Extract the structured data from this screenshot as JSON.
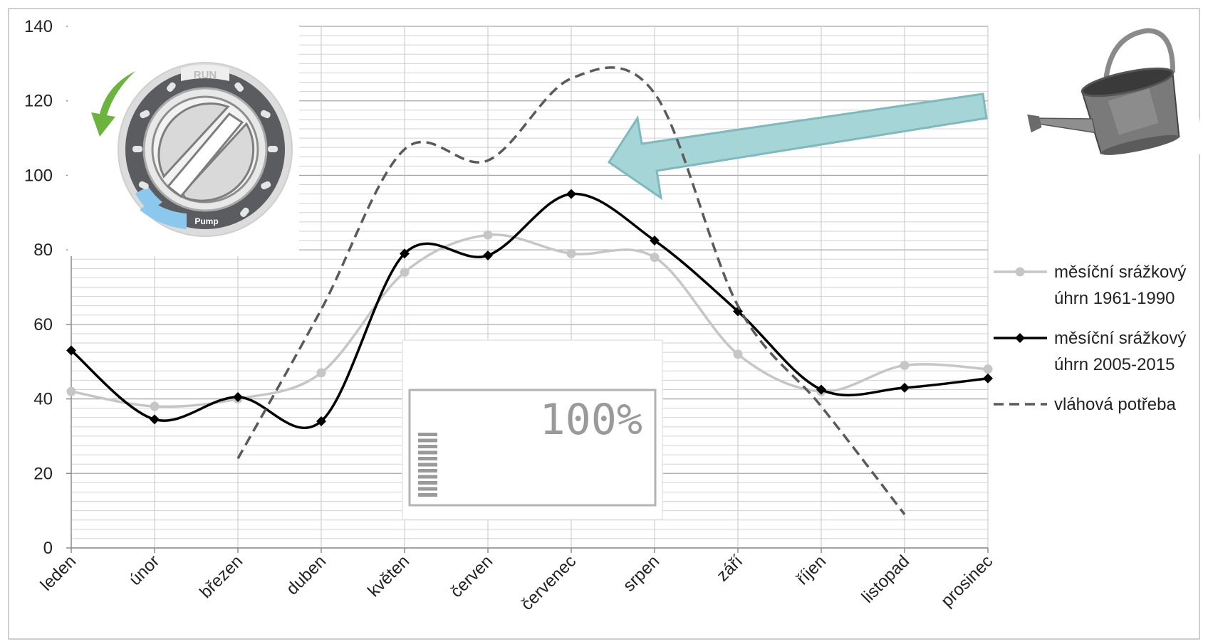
{
  "chart_data": {
    "type": "line",
    "categories": [
      "leden",
      "únor",
      "březen",
      "duben",
      "květen",
      "červen",
      "červenec",
      "srpen",
      "září",
      "říjen",
      "listopad",
      "prosinec"
    ],
    "ylim": [
      0,
      140
    ],
    "yticks": [
      0,
      20,
      40,
      60,
      80,
      100,
      120,
      140
    ],
    "grid": true,
    "legend_position": "right",
    "series": [
      {
        "name": "měsíční srážkový úhrn 1961-1990",
        "values": [
          42,
          38,
          40,
          47,
          74,
          84,
          79,
          78,
          52,
          42,
          49,
          48
        ],
        "color": "#c6c6c6",
        "marker": "circle",
        "dash": "solid"
      },
      {
        "name": "měsíční srážkový úhrn 2005-2015",
        "values": [
          53,
          34.5,
          40.5,
          34,
          79,
          78.5,
          95,
          82.5,
          63.5,
          42.5,
          43,
          45.5
        ],
        "color": "#000000",
        "marker": "diamond",
        "dash": "solid"
      },
      {
        "name": "vláhová potřeba",
        "values": [
          null,
          null,
          24,
          64,
          107,
          104,
          126,
          122,
          65,
          38,
          9,
          null
        ],
        "color": "#5a5a5a",
        "marker": "none",
        "dash": "dashed"
      }
    ]
  },
  "legend": [
    {
      "line1": "měsíční srážkový",
      "line2": "úhrn 1961-1990"
    },
    {
      "line1": "měsíční srážkový",
      "line2": "úhrn 2005-2015"
    },
    {
      "line1": "vláhová potřeba",
      "line2": ""
    }
  ],
  "lcd": {
    "percent": "100%",
    "bar_count": 11
  },
  "dial": {
    "top_label": "RUN",
    "bottom_label": "Pump"
  },
  "colors": {
    "arrow_fill": "#a6d5d8",
    "arrow_stroke": "#7fb8bd",
    "check_arrow": "#6db33f",
    "dial_dark": "#5a5c5f",
    "dial_accent": "#8cc8ee"
  },
  "icons": [
    "controller-dial-icon",
    "rotate-arrow-icon",
    "watering-can-icon",
    "pointer-arrow-icon",
    "lcd-display-icon"
  ]
}
